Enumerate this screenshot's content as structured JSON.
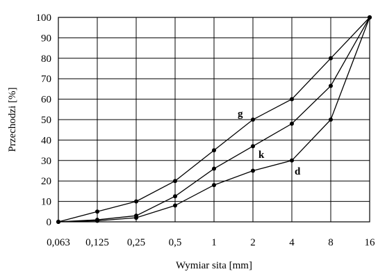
{
  "chart_data": {
    "type": "line",
    "title": "",
    "xlabel": "Wymiar sita [mm]",
    "ylabel": "Przechodzi [%]",
    "x_scale": "log2-categorical",
    "categories": [
      "0,063",
      "0,125",
      "0,25",
      "0,5",
      "1",
      "2",
      "4",
      "8",
      "16"
    ],
    "ylim": [
      0,
      100
    ],
    "yticks": [
      "0",
      "10",
      "20",
      "30",
      "40",
      "50",
      "60",
      "70",
      "80",
      "90",
      "100"
    ],
    "grid": true,
    "series": [
      {
        "name": "g",
        "values": [
          0,
          5,
          10,
          20,
          35,
          50,
          60,
          80,
          100
        ]
      },
      {
        "name": "k",
        "values": [
          0,
          1,
          3,
          12.5,
          26,
          37,
          48,
          66.5,
          100
        ]
      },
      {
        "name": "d",
        "values": [
          0,
          0.5,
          2,
          8,
          18,
          25,
          30,
          50,
          100
        ]
      }
    ]
  }
}
